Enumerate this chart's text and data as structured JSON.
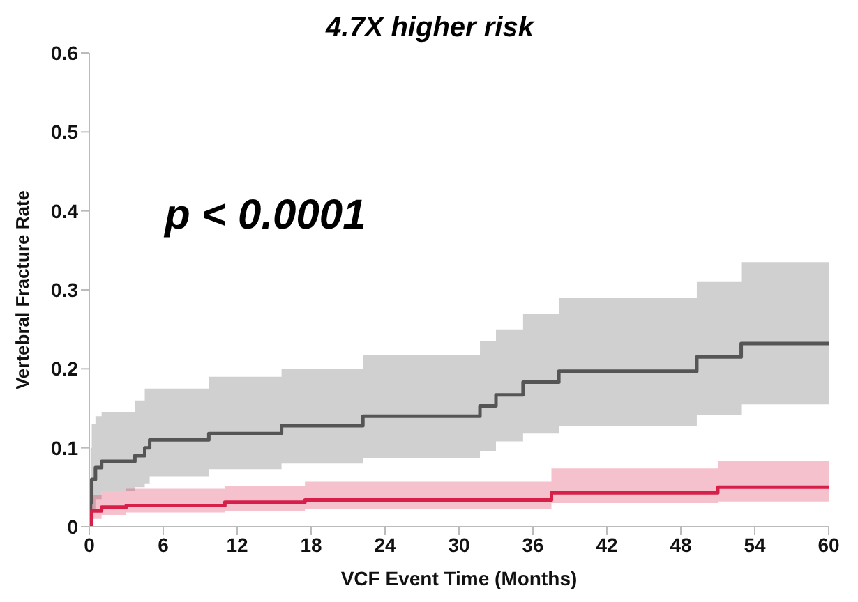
{
  "chart_data": {
    "type": "step",
    "title": "4.7X higher risk",
    "xlabel": "VCF Event Time (Months)",
    "ylabel": "Vertebral Fracture Rate",
    "annotations": [
      "p < 0.0001"
    ],
    "xlim": [
      0,
      60
    ],
    "xticks": [
      0,
      6,
      12,
      18,
      24,
      30,
      36,
      42,
      48,
      54,
      60
    ],
    "ylim": [
      0,
      0.6
    ],
    "yticks": [
      0,
      0.1,
      0.2,
      0.3,
      0.4,
      0.5,
      0.6
    ],
    "series": [
      {
        "color": "#555555",
        "x": [
          0,
          0.1,
          0.2,
          0.5,
          1,
          3.7,
          4.5,
          4.9,
          9.7,
          15.6,
          22.2,
          31.7,
          33,
          35.2,
          38.1,
          49.3,
          52.9,
          60
        ],
        "values": [
          0,
          0.03,
          0.06,
          0.075,
          0.083,
          0.09,
          0.1,
          0.11,
          0.118,
          0.128,
          0.14,
          0.153,
          0.167,
          0.183,
          0.197,
          0.215,
          0.232,
          0.232
        ],
        "lower": [
          0,
          0.005,
          0.02,
          0.035,
          0.045,
          0.05,
          0.055,
          0.064,
          0.073,
          0.08,
          0.087,
          0.096,
          0.108,
          0.118,
          0.128,
          0.142,
          0.155,
          0.155
        ],
        "upper": [
          0,
          0.1,
          0.13,
          0.14,
          0.145,
          0.16,
          0.175,
          0.175,
          0.19,
          0.2,
          0.217,
          0.235,
          0.25,
          0.27,
          0.29,
          0.31,
          0.335,
          0.335
        ]
      },
      {
        "color": "#d6204a",
        "x": [
          0,
          0.2,
          1,
          3,
          11,
          17.5,
          37.5,
          51,
          60
        ],
        "values": [
          0,
          0.02,
          0.025,
          0.027,
          0.031,
          0.034,
          0.043,
          0.05,
          0.05
        ],
        "lower": [
          0,
          0.01,
          0.015,
          0.018,
          0.02,
          0.022,
          0.03,
          0.032,
          0.032
        ],
        "upper": [
          0,
          0.04,
          0.045,
          0.048,
          0.052,
          0.057,
          0.074,
          0.083,
          0.083
        ]
      }
    ]
  }
}
